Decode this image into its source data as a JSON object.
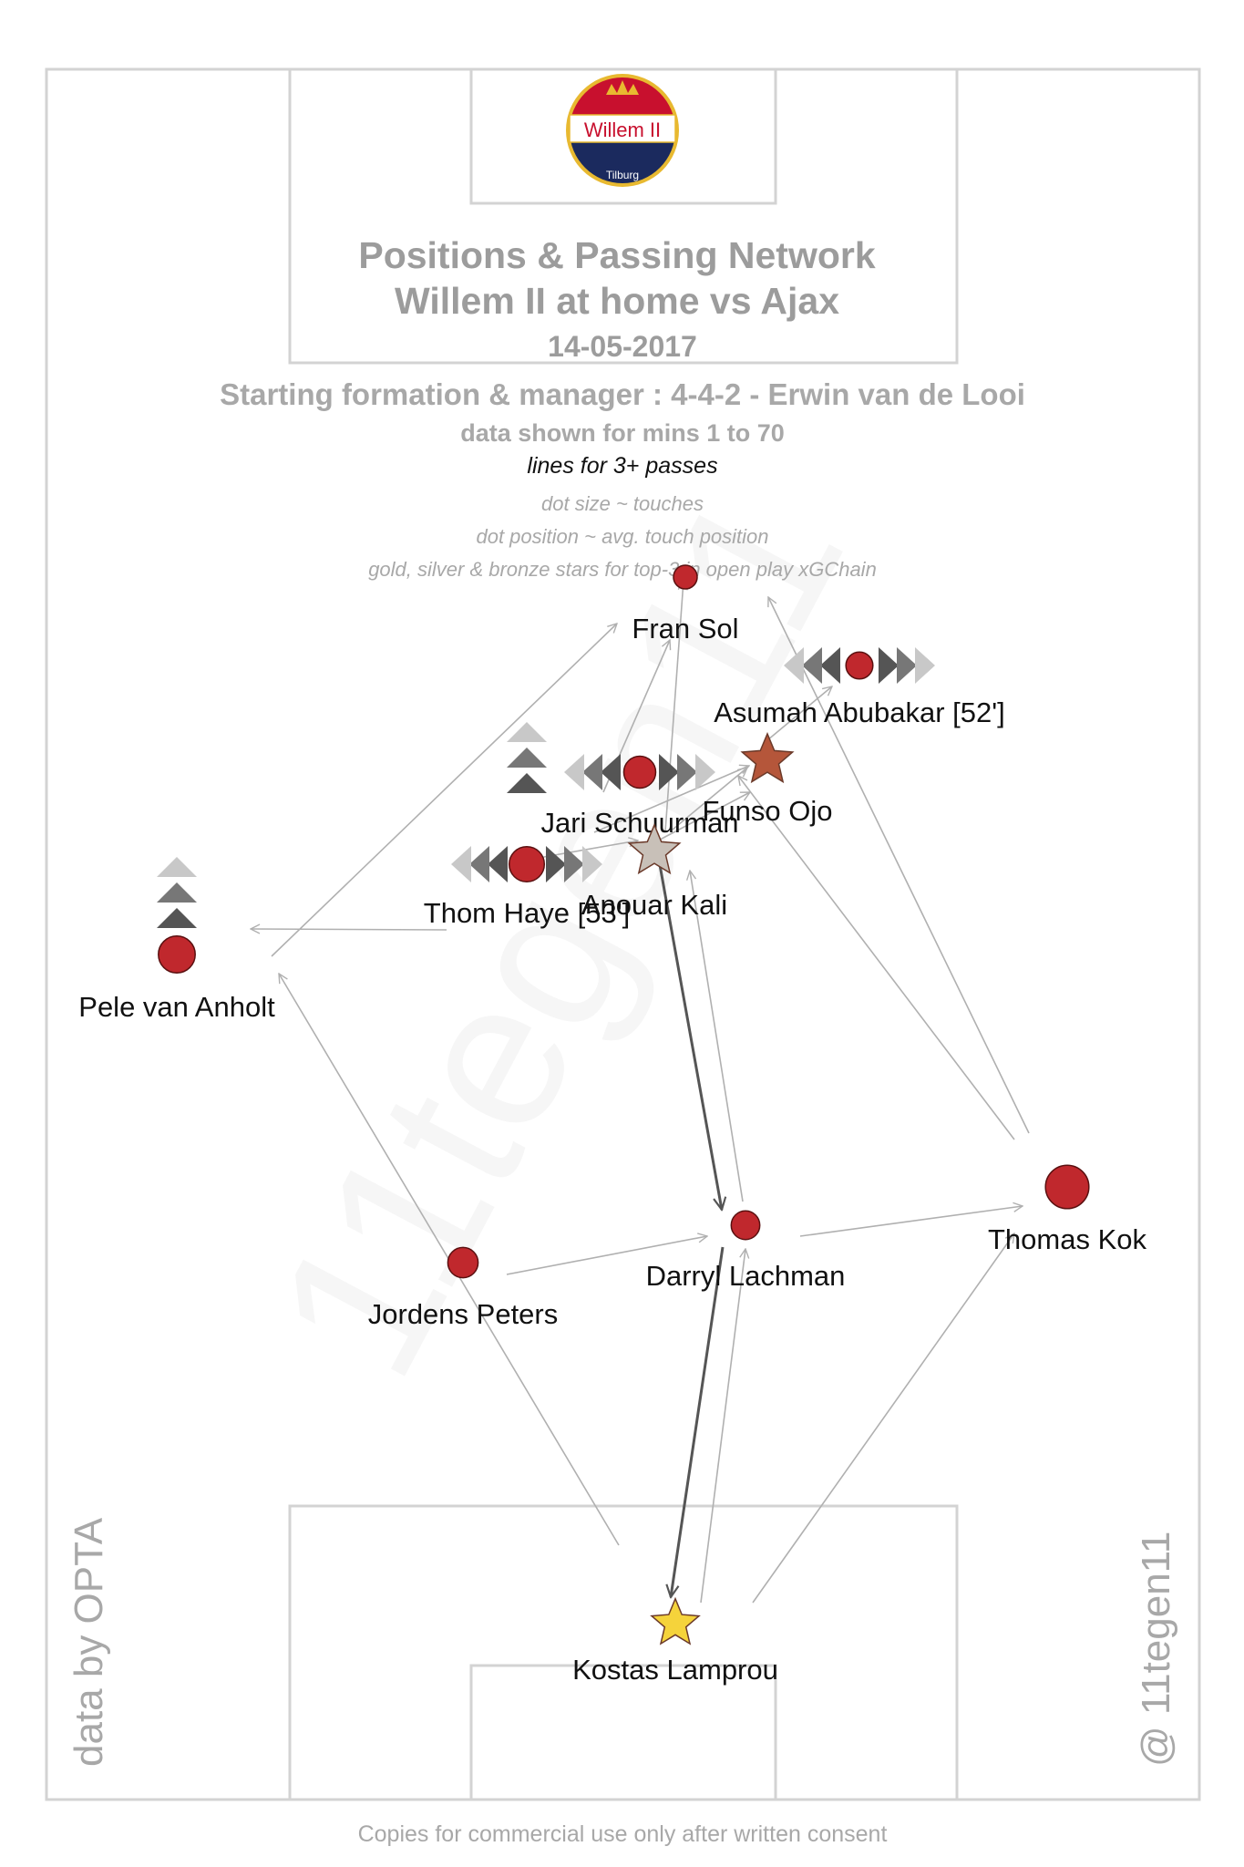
{
  "header": {
    "title_line1": "Positions & Passing Network",
    "title_line2": "Willem II at home vs Ajax",
    "date": "14-05-2017",
    "formation": "Starting formation & manager : 4-4-2 - Erwin van de Looi",
    "minutes": "data shown for mins 1 to 70",
    "lines_note": "lines for 3+ passes",
    "legend_size": "dot size ~ touches",
    "legend_position": "dot position ~ avg. touch position",
    "legend_stars": "gold, silver & bronze stars for top-3 in open play xGChain"
  },
  "crest": {
    "name": "Willem II",
    "city": "Tilburg",
    "colors": {
      "red": "#c8102e",
      "white": "#ffffff",
      "navy": "#1b2a5e",
      "gold": "#e8b930"
    }
  },
  "side_texts": {
    "left": "data by OPTA",
    "right": "@ 11tegen11",
    "footer": "Copies for commercial use only after written consent",
    "watermark": "11tegen11"
  },
  "colors": {
    "dot": "#c0282d",
    "line_thin": "#b0b0b0",
    "line_thick": "#555555",
    "pitch": "#d3d3d3",
    "gold_star": "#f5d33b",
    "silver_star": "#c8c0b8",
    "bronze_star": "#b5563a"
  },
  "players": [
    {
      "name": "Fran Sol",
      "touches": 20,
      "star": ""
    },
    {
      "name": "Asumah Abubakar [52']",
      "touches": 24,
      "star": "",
      "move": "wide"
    },
    {
      "name": "Funso Ojo",
      "touches": 38,
      "star": "bronze"
    },
    {
      "name": "Jari Schuurman",
      "touches": 30,
      "star": "",
      "move": "wide-up"
    },
    {
      "name": "Anouar Kali",
      "touches": 38,
      "star": "silver"
    },
    {
      "name": "Thom Haye [53']",
      "touches": 34,
      "star": "",
      "move": "wide"
    },
    {
      "name": "Pele van Anholt",
      "touches": 36,
      "star": "",
      "move": "up"
    },
    {
      "name": "Darryl Lachman",
      "touches": 26,
      "star": ""
    },
    {
      "name": "Thomas Kok",
      "touches": 44,
      "star": ""
    },
    {
      "name": "Jordens Peters",
      "touches": 28,
      "star": ""
    },
    {
      "name": "Kostas Lamprou",
      "touches": 34,
      "star": "gold"
    }
  ]
}
